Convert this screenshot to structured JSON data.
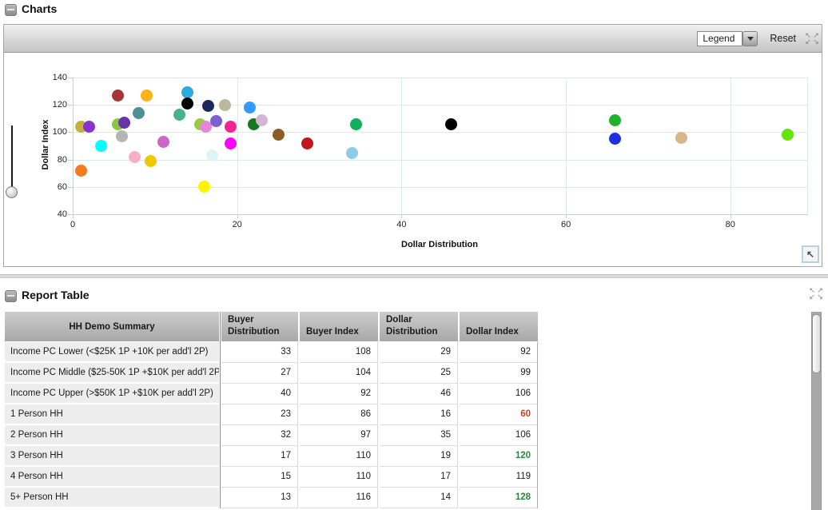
{
  "charts": {
    "title": "Charts",
    "toolbar": {
      "legend_label": "Legend",
      "reset_label": "Reset"
    },
    "chart_data": {
      "type": "scatter",
      "title": "",
      "xlabel": "Dollar Distribution",
      "ylabel": "Dollar Index",
      "xlim": [
        0,
        90
      ],
      "ylim": [
        40,
        140
      ],
      "xticks": [
        0,
        20,
        40,
        60,
        80
      ],
      "yticks": [
        40,
        60,
        80,
        100,
        120,
        140
      ],
      "grid": true,
      "legend_position": "none",
      "points": [
        {
          "x": 1,
          "y": 72,
          "color": "#F47B20"
        },
        {
          "x": 1,
          "y": 104,
          "color": "#C3B13F"
        },
        {
          "x": 2,
          "y": 104,
          "color": "#8833CC"
        },
        {
          "x": 3.5,
          "y": 90,
          "color": "#00FFFF"
        },
        {
          "x": 5.5,
          "y": 127,
          "color": "#A63538"
        },
        {
          "x": 5.5,
          "y": 106,
          "color": "#8CC63E"
        },
        {
          "x": 6.3,
          "y": 107,
          "color": "#6733A8"
        },
        {
          "x": 6,
          "y": 97,
          "color": "#B5B5B5"
        },
        {
          "x": 7.5,
          "y": 82,
          "color": "#F7AFC3"
        },
        {
          "x": 8,
          "y": 114,
          "color": "#4E8F93"
        },
        {
          "x": 9,
          "y": 127,
          "color": "#FBB118"
        },
        {
          "x": 9.5,
          "y": 79,
          "color": "#EEC900"
        },
        {
          "x": 11,
          "y": 93,
          "color": "#CC66CC"
        },
        {
          "x": 13,
          "y": 113,
          "color": "#46B28E"
        },
        {
          "x": 14,
          "y": 129,
          "color": "#29ABE2"
        },
        {
          "x": 14,
          "y": 121,
          "color": "#000000"
        },
        {
          "x": 15.5,
          "y": 106,
          "color": "#97CC3F"
        },
        {
          "x": 16.2,
          "y": 104,
          "color": "#E487D8"
        },
        {
          "x": 16.5,
          "y": 119,
          "color": "#1B2A5E"
        },
        {
          "x": 17.5,
          "y": 108,
          "color": "#7A5FD0"
        },
        {
          "x": 17,
          "y": 83,
          "color": "#DFF3F6"
        },
        {
          "x": 16,
          "y": 60,
          "color": "#FFF200"
        },
        {
          "x": 18.5,
          "y": 120,
          "color": "#BCB89E"
        },
        {
          "x": 19.2,
          "y": 104,
          "color": "#F2258E"
        },
        {
          "x": 19.2,
          "y": 92,
          "color": "#FB04FB"
        },
        {
          "x": 21.5,
          "y": 118,
          "color": "#3399FF"
        },
        {
          "x": 22,
          "y": 106,
          "color": "#17771F"
        },
        {
          "x": 23,
          "y": 109,
          "color": "#D3B6D3"
        },
        {
          "x": 25,
          "y": 98,
          "color": "#8A5C28"
        },
        {
          "x": 28.5,
          "y": 92,
          "color": "#C2151F"
        },
        {
          "x": 34.5,
          "y": 106,
          "color": "#0FAF5B"
        },
        {
          "x": 34,
          "y": 85,
          "color": "#8ECBE8"
        },
        {
          "x": 46,
          "y": 106,
          "color": "#000000"
        },
        {
          "x": 66,
          "y": 109,
          "color": "#1FB32C"
        },
        {
          "x": 66,
          "y": 95,
          "color": "#1F2FE0"
        },
        {
          "x": 74,
          "y": 96,
          "color": "#D8B68A"
        },
        {
          "x": 87,
          "y": 98,
          "color": "#63E50A"
        }
      ]
    }
  },
  "report_table": {
    "title": "Report Table",
    "columns": [
      "HH Demo Summary",
      "Buyer Distribution",
      "Buyer Index",
      "Dollar Distribution",
      "Dollar Index"
    ],
    "rows": [
      {
        "label": "Income PC Lower (<$25K 1P +10K per add'l 2P)",
        "buyer_distribution": 33,
        "buyer_index": 108,
        "dollar_distribution": 29,
        "dollar_index": 92,
        "dollar_index_highlight": null
      },
      {
        "label": "Income PC Middle ($25-50K 1P +$10K per add'l 2P)",
        "buyer_distribution": 27,
        "buyer_index": 104,
        "dollar_distribution": 25,
        "dollar_index": 99,
        "dollar_index_highlight": null
      },
      {
        "label": "Income PC Upper (>$50K 1P +$10K per add'l 2P)",
        "buyer_distribution": 40,
        "buyer_index": 92,
        "dollar_distribution": 46,
        "dollar_index": 106,
        "dollar_index_highlight": null
      },
      {
        "label": "1 Person HH",
        "buyer_distribution": 23,
        "buyer_index": 86,
        "dollar_distribution": 16,
        "dollar_index": 60,
        "dollar_index_highlight": "low"
      },
      {
        "label": "2 Person HH",
        "buyer_distribution": 32,
        "buyer_index": 97,
        "dollar_distribution": 35,
        "dollar_index": 106,
        "dollar_index_highlight": null
      },
      {
        "label": "3 Person HH",
        "buyer_distribution": 17,
        "buyer_index": 110,
        "dollar_distribution": 19,
        "dollar_index": 120,
        "dollar_index_highlight": "high"
      },
      {
        "label": "4 Person HH",
        "buyer_distribution": 15,
        "buyer_index": 110,
        "dollar_distribution": 17,
        "dollar_index": 119,
        "dollar_index_highlight": null
      },
      {
        "label": "5+ Person HH",
        "buyer_distribution": 13,
        "buyer_index": 116,
        "dollar_distribution": 14,
        "dollar_index": 128,
        "dollar_index_highlight": "high"
      }
    ]
  },
  "colors": {
    "highlight_low": "#C0432B",
    "highlight_high": "#2E8540",
    "grid": "#DEE8F3",
    "axis": "#C2CFE0"
  },
  "icons": {
    "expand_arrows": [
      "↖",
      "↗",
      "↙",
      "↘"
    ],
    "corner_arrow": "↖"
  }
}
